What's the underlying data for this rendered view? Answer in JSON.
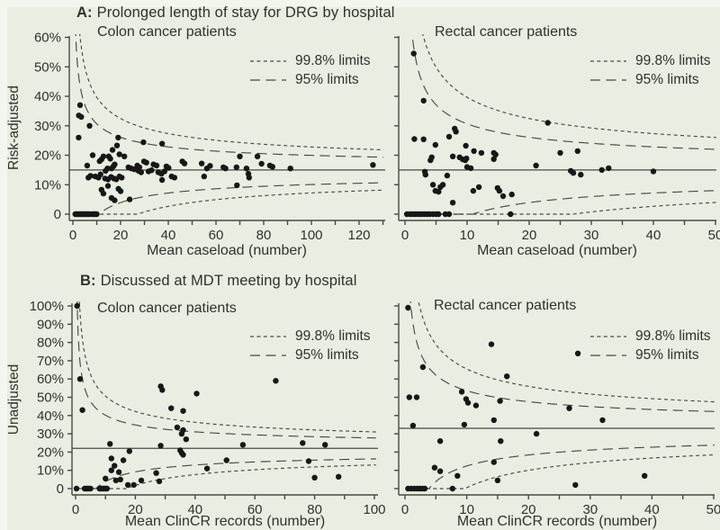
{
  "figure": {
    "background": "#e8eee2",
    "edge_light": "#f3f6ee",
    "text_color": "#2e332b",
    "line_color": "#454b43",
    "dot_color": "#171717"
  },
  "legend": {
    "limits_998": "99.8% limits",
    "limits_95": "95% limits"
  },
  "sections": {
    "A": {
      "label": "A:",
      "title": "Prolonged length of stay for DRG by hospital",
      "ylabel": "Risk-adjusted"
    },
    "B": {
      "label": "B:",
      "title": "Discussed at MDT meeting by hospital",
      "ylabel": "Unadjusted"
    }
  },
  "chart_data": [
    {
      "id": "a-colon",
      "type": "scatter",
      "subtitle": "Colon cancer patients",
      "xlabel": "Mean caseload (number)",
      "ylabel": "Risk-adjusted",
      "x_range": [
        0,
        130
      ],
      "x_tick_step": 10,
      "x_label_step": 20,
      "y_range": [
        0,
        60
      ],
      "y_tick_step": 10,
      "show_y_tick_labels": true,
      "grid": false,
      "legend_entries": [
        "99.8% limits",
        "95% limits"
      ],
      "target_pct": 15,
      "funnel": {
        "multiplier": 2,
        "z_95": 1.96,
        "z_998": 3.09
      },
      "points": [
        [
          1,
          0
        ],
        [
          1.5,
          0
        ],
        [
          2,
          0
        ],
        [
          2.5,
          0
        ],
        [
          3,
          0
        ],
        [
          3.5,
          0
        ],
        [
          4,
          0
        ],
        [
          4.5,
          0
        ],
        [
          5,
          0
        ],
        [
          5.5,
          0
        ],
        [
          6,
          0
        ],
        [
          6.5,
          0
        ],
        [
          7,
          0
        ],
        [
          8,
          0
        ],
        [
          8.5,
          0
        ],
        [
          9,
          0
        ],
        [
          9.5,
          0
        ],
        [
          10,
          0
        ],
        [
          3,
          37
        ],
        [
          2.5,
          33.5
        ],
        [
          3.5,
          33
        ],
        [
          2.4,
          26
        ],
        [
          7,
          30
        ],
        [
          19,
          26
        ],
        [
          6,
          16.5
        ],
        [
          6.5,
          12.4
        ],
        [
          7.4,
          13
        ],
        [
          8.3,
          20
        ],
        [
          9.4,
          12.8
        ],
        [
          10.7,
          12.4
        ],
        [
          11.2,
          18
        ],
        [
          11.6,
          13.5
        ],
        [
          12,
          18.6
        ],
        [
          12,
          8.3
        ],
        [
          12.8,
          19.6
        ],
        [
          12.8,
          7
        ],
        [
          13.5,
          12.1
        ],
        [
          13.7,
          14.7
        ],
        [
          14.5,
          15.5
        ],
        [
          14.7,
          11.8
        ],
        [
          14.7,
          9.6
        ],
        [
          15,
          19.6
        ],
        [
          15.7,
          18.8
        ],
        [
          16,
          12.6
        ],
        [
          16.2,
          15.5
        ],
        [
          16.2,
          5.5
        ],
        [
          16.6,
          21.8
        ],
        [
          17,
          16.2
        ],
        [
          17.2,
          12.1
        ],
        [
          17.5,
          16.9
        ],
        [
          17.5,
          4.7
        ],
        [
          18.2,
          11.8
        ],
        [
          18.5,
          23.3
        ],
        [
          19.1,
          8.6
        ],
        [
          19.5,
          20.3
        ],
        [
          19.5,
          12.8
        ],
        [
          20,
          7.8
        ],
        [
          20.5,
          12.4
        ],
        [
          21.6,
          19.6
        ],
        [
          23.3,
          15.9
        ],
        [
          23.8,
          5
        ],
        [
          24.5,
          15.5
        ],
        [
          25.8,
          15.2
        ],
        [
          27,
          16.5
        ],
        [
          27.5,
          14.7
        ],
        [
          27.9,
          15.9
        ],
        [
          28.6,
          14.2
        ],
        [
          29.6,
          24.4
        ],
        [
          29.8,
          17.9
        ],
        [
          30.8,
          17.5
        ],
        [
          31.7,
          14.5
        ],
        [
          33,
          14.9
        ],
        [
          33.8,
          16.9
        ],
        [
          35.1,
          16.5
        ],
        [
          35.8,
          14.2
        ],
        [
          37.1,
          13.7
        ],
        [
          37.4,
          23.9
        ],
        [
          37.4,
          11.6
        ],
        [
          38.4,
          14.5
        ],
        [
          39.2,
          16.2
        ],
        [
          40.1,
          15.7
        ],
        [
          41.4,
          12.8
        ],
        [
          42.6,
          12.4
        ],
        [
          45.9,
          17.9
        ],
        [
          46.8,
          17.2
        ],
        [
          54,
          17.2
        ],
        [
          55,
          12.8
        ],
        [
          56.2,
          15.5
        ],
        [
          57.5,
          16.4
        ],
        [
          63.1,
          15.9
        ],
        [
          64,
          15.5
        ],
        [
          68.6,
          15.9
        ],
        [
          68.8,
          9.8
        ],
        [
          70,
          19.6
        ],
        [
          72.8,
          15.5
        ],
        [
          73.6,
          13.7
        ],
        [
          73.9,
          12.4
        ],
        [
          77.4,
          19.6
        ],
        [
          79.1,
          17.1
        ],
        [
          82.6,
          16.5
        ],
        [
          83.7,
          16.1
        ],
        [
          91.2,
          15.5
        ],
        [
          125.8,
          16.7
        ]
      ]
    },
    {
      "id": "a-rectal",
      "type": "scatter",
      "subtitle": "Rectal cancer patients",
      "xlabel": "Mean caseload (number)",
      "ylabel": "Risk-adjusted",
      "x_range": [
        0,
        50
      ],
      "x_tick_step": 5,
      "x_label_step": 10,
      "y_range": [
        0,
        60
      ],
      "y_tick_step": 10,
      "show_y_tick_labels": false,
      "grid": false,
      "legend_entries": [
        "99.8% limits",
        "95% limits"
      ],
      "target_pct": 15,
      "funnel": {
        "multiplier": 2,
        "z_95": 1.96,
        "z_998": 3.09
      },
      "points": [
        [
          0.3,
          0
        ],
        [
          0.8,
          0
        ],
        [
          1.2,
          0
        ],
        [
          1.6,
          0
        ],
        [
          2,
          0
        ],
        [
          2.4,
          0
        ],
        [
          2.8,
          0
        ],
        [
          3.2,
          0
        ],
        [
          3.6,
          0
        ],
        [
          4,
          0
        ],
        [
          4.5,
          0
        ],
        [
          5,
          0
        ],
        [
          5.4,
          0
        ],
        [
          6.5,
          0
        ],
        [
          7.1,
          0
        ],
        [
          17,
          0
        ],
        [
          1.4,
          54.5
        ],
        [
          3,
          38.5
        ],
        [
          8,
          29
        ],
        [
          8.2,
          28
        ],
        [
          23,
          31
        ],
        [
          1.5,
          25.5
        ],
        [
          3,
          25.4
        ],
        [
          4.9,
          23.5
        ],
        [
          7.1,
          26.3
        ],
        [
          9.8,
          23.2
        ],
        [
          11.1,
          21.4
        ],
        [
          12.3,
          20.8
        ],
        [
          4.3,
          19.3
        ],
        [
          4.1,
          18.3
        ],
        [
          7.7,
          19.6
        ],
        [
          8.8,
          19.3
        ],
        [
          9.9,
          18.9
        ],
        [
          9.3,
          18.6
        ],
        [
          9.7,
          18.3
        ],
        [
          10,
          16
        ],
        [
          10.6,
          15.6
        ],
        [
          14.3,
          20.8
        ],
        [
          14.6,
          20.2
        ],
        [
          14.3,
          18.7
        ],
        [
          21.1,
          16.5
        ],
        [
          25,
          20.8
        ],
        [
          27.8,
          21.4
        ],
        [
          26.7,
          14.7
        ],
        [
          27.1,
          14
        ],
        [
          28.3,
          13.4
        ],
        [
          31.7,
          15
        ],
        [
          32.8,
          15.6
        ],
        [
          40,
          14.5
        ],
        [
          3.2,
          14.4
        ],
        [
          3.3,
          13.4
        ],
        [
          4.5,
          10
        ],
        [
          4.9,
          7.9
        ],
        [
          5.4,
          7.6
        ],
        [
          5.7,
          9.2
        ],
        [
          6.1,
          10
        ],
        [
          6.8,
          13.1
        ],
        [
          11,
          7.9
        ],
        [
          11.9,
          9.2
        ],
        [
          14.9,
          8.9
        ],
        [
          15.2,
          7.9
        ],
        [
          15.8,
          6.1
        ],
        [
          17.2,
          6.7
        ],
        [
          7.7,
          3.9
        ]
      ]
    },
    {
      "id": "b-colon",
      "type": "scatter",
      "subtitle": "Colon cancer patients",
      "xlabel": "Mean ClinCR records (number)",
      "ylabel": "Unadjusted",
      "x_range": [
        0,
        100
      ],
      "x_tick_step": 10,
      "x_label_step": 20,
      "y_range": [
        0,
        100
      ],
      "y_tick_step": 10,
      "show_y_tick_labels": true,
      "grid": false,
      "legend_entries": [
        "99.8% limits",
        "95% limits"
      ],
      "target_pct": 22,
      "funnel": {
        "multiplier": 2,
        "z_95": 1.96,
        "z_998": 3.09
      },
      "points": [
        [
          0.5,
          100
        ],
        [
          1.5,
          60
        ],
        [
          2.3,
          43
        ],
        [
          0.3,
          0
        ],
        [
          3,
          0
        ],
        [
          3.5,
          0
        ],
        [
          4,
          0
        ],
        [
          4.5,
          0
        ],
        [
          5,
          0
        ],
        [
          8,
          0
        ],
        [
          8.5,
          0
        ],
        [
          9,
          0
        ],
        [
          9.5,
          0
        ],
        [
          10,
          0
        ],
        [
          10.5,
          0
        ],
        [
          17.5,
          2
        ],
        [
          19.5,
          2
        ],
        [
          10,
          5.5
        ],
        [
          13.5,
          4.5
        ],
        [
          15,
          5
        ],
        [
          12,
          10
        ],
        [
          13,
          12.5
        ],
        [
          12,
          16.5
        ],
        [
          16,
          15.5
        ],
        [
          14.5,
          9
        ],
        [
          11.5,
          24.5
        ],
        [
          18,
          20.5
        ],
        [
          22,
          4.5
        ],
        [
          27,
          8.5
        ],
        [
          28,
          4
        ],
        [
          28.5,
          56
        ],
        [
          29,
          54
        ],
        [
          40.5,
          52
        ],
        [
          32,
          44
        ],
        [
          36,
          42.5
        ],
        [
          34,
          33.5
        ],
        [
          36,
          32
        ],
        [
          35.5,
          30
        ],
        [
          37,
          27
        ],
        [
          35,
          21
        ],
        [
          35.5,
          19.5
        ],
        [
          36,
          18.5
        ],
        [
          28.5,
          23.5
        ],
        [
          44,
          11
        ],
        [
          50.5,
          15.5
        ],
        [
          56,
          24
        ],
        [
          67,
          59
        ],
        [
          76,
          25
        ],
        [
          83.5,
          24
        ],
        [
          78,
          15
        ],
        [
          80,
          6
        ],
        [
          88,
          6.5
        ]
      ]
    },
    {
      "id": "b-rectal",
      "type": "scatter",
      "subtitle": "Rectal cancer patients",
      "xlabel": "Mean ClinCR records (number)",
      "ylabel": "Unadjusted",
      "x_range": [
        0,
        50
      ],
      "x_tick_step": 5,
      "x_label_step": 10,
      "y_range": [
        0,
        100
      ],
      "y_tick_step": 10,
      "show_y_tick_labels": false,
      "grid": false,
      "legend_entries": [
        "99.8% limits",
        "95% limits"
      ],
      "target_pct": 33,
      "funnel": {
        "multiplier": 2,
        "z_95": 1.96,
        "z_998": 3.09
      },
      "points": [
        [
          0.5,
          99
        ],
        [
          14,
          79
        ],
        [
          28,
          74
        ],
        [
          2.9,
          66.5
        ],
        [
          16.5,
          61.5
        ],
        [
          0.7,
          50
        ],
        [
          1.9,
          50
        ],
        [
          9.2,
          53
        ],
        [
          9.9,
          49
        ],
        [
          10.2,
          47
        ],
        [
          11.5,
          45.5
        ],
        [
          15.4,
          48
        ],
        [
          26.6,
          44
        ],
        [
          1.3,
          34.5
        ],
        [
          9.6,
          35
        ],
        [
          14.4,
          37.5
        ],
        [
          32,
          37.5
        ],
        [
          21.3,
          30
        ],
        [
          5.7,
          26
        ],
        [
          15.5,
          26
        ],
        [
          14.4,
          14.5
        ],
        [
          4.8,
          11.5
        ],
        [
          5.7,
          9.5
        ],
        [
          8.5,
          7
        ],
        [
          15,
          4.5
        ],
        [
          38.8,
          7
        ],
        [
          27.6,
          2
        ],
        [
          0.5,
          0
        ],
        [
          1,
          0
        ],
        [
          1.5,
          0
        ],
        [
          2,
          0
        ],
        [
          2.4,
          0
        ],
        [
          2.8,
          0
        ],
        [
          3.2,
          0
        ],
        [
          7.7,
          0
        ]
      ]
    }
  ]
}
